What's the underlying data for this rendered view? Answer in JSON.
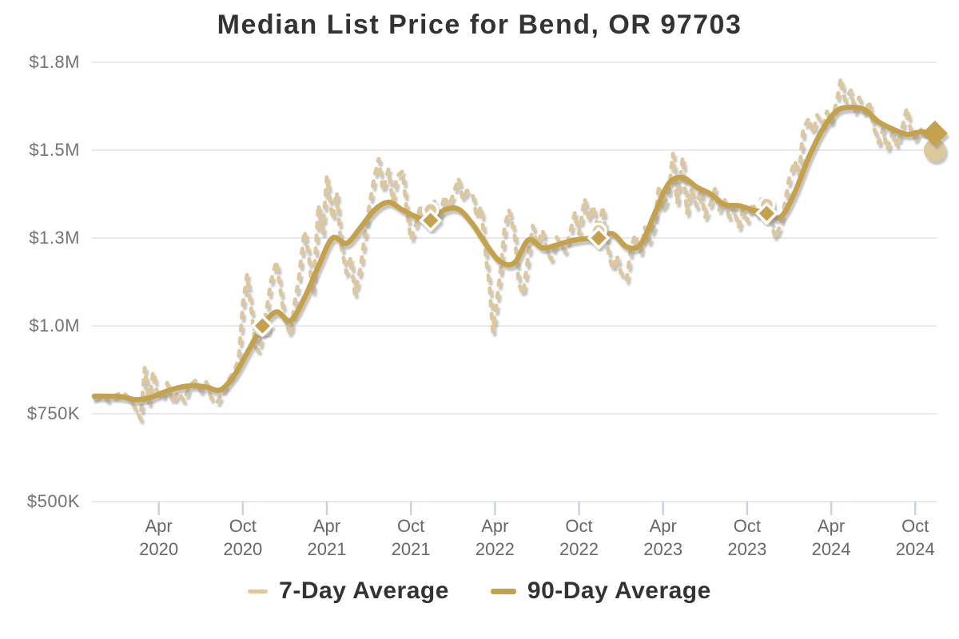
{
  "title": "Median List Price for Bend, OR 97703",
  "legend": [
    {
      "label": "7-Day Average",
      "color": "#dcc89c"
    },
    {
      "label": "90-Day Average",
      "color": "#c4a24c"
    }
  ],
  "colors": {
    "seven_day": "#dcc89c",
    "ninety_day": "#c4a24c",
    "grid": "#dcdcdc",
    "x_tick": "#c8d2e6",
    "axis_text": "#737373",
    "title_text": "#333333",
    "marker_outline": "#ffffff"
  },
  "chart_data": {
    "type": "line",
    "title": "Median List Price for Bend, OR 97703",
    "unit": "USD thousands",
    "x_unit": "months since Nov 2019",
    "xlim": [
      0,
      60
    ],
    "ylim": [
      500,
      1750
    ],
    "grid": "horizontal",
    "legend_position": "bottom-center",
    "y_ticks": [
      {
        "label": "$1.8M",
        "value": 1750
      },
      {
        "label": "$1.5M",
        "value": 1500
      },
      {
        "label": "$1.3M",
        "value": 1250
      },
      {
        "label": "$1.0M",
        "value": 1000
      },
      {
        "label": "$750K",
        "value": 750
      },
      {
        "label": "$500K",
        "value": 500
      }
    ],
    "x_ticks": [
      {
        "month": "Apr",
        "year": "2020",
        "t": 4.6
      },
      {
        "month": "Oct",
        "year": "2020",
        "t": 10.6
      },
      {
        "month": "Apr",
        "year": "2021",
        "t": 16.6
      },
      {
        "month": "Oct",
        "year": "2021",
        "t": 22.6
      },
      {
        "month": "Apr",
        "year": "2022",
        "t": 28.6
      },
      {
        "month": "Oct",
        "year": "2022",
        "t": 34.6
      },
      {
        "month": "Apr",
        "year": "2023",
        "t": 40.6
      },
      {
        "month": "Oct",
        "year": "2023",
        "t": 46.6
      },
      {
        "month": "Apr",
        "year": "2024",
        "t": 52.6
      },
      {
        "month": "Oct",
        "year": "2024",
        "t": 58.6
      }
    ],
    "series": [
      {
        "name": "7-Day Average",
        "style": "dashed",
        "color": "#dcc89c",
        "points": [
          [
            0,
            795
          ],
          [
            0.5,
            808
          ],
          [
            1,
            788
          ],
          [
            1.5,
            802
          ],
          [
            2,
            812
          ],
          [
            2.5,
            795
          ],
          [
            3,
            760
          ],
          [
            3.3,
            735
          ],
          [
            3.6,
            880
          ],
          [
            3.9,
            780
          ],
          [
            4.2,
            870
          ],
          [
            4.5,
            810
          ],
          [
            4.9,
            795
          ],
          [
            5.2,
            838
          ],
          [
            5.6,
            782
          ],
          [
            6,
            812
          ],
          [
            6.4,
            786
          ],
          [
            6.8,
            830
          ],
          [
            7.2,
            844
          ],
          [
            7.6,
            815
          ],
          [
            8,
            840
          ],
          [
            8.4,
            788
          ],
          [
            8.8,
            784
          ],
          [
            9.2,
            815
          ],
          [
            9.6,
            848
          ],
          [
            10,
            872
          ],
          [
            10.3,
            905
          ],
          [
            10.6,
            1060
          ],
          [
            10.9,
            1145
          ],
          [
            11.2,
            1050
          ],
          [
            11.5,
            940
          ],
          [
            11.75,
            928
          ],
          [
            12,
            995
          ],
          [
            12.3,
            1045
          ],
          [
            12.6,
            1125
          ],
          [
            13,
            1185
          ],
          [
            13.3,
            1100
          ],
          [
            13.6,
            1015
          ],
          [
            14,
            975
          ],
          [
            14.3,
            1065
          ],
          [
            14.6,
            1135
          ],
          [
            15,
            1270
          ],
          [
            15.3,
            1205
          ],
          [
            15.6,
            1090
          ],
          [
            16,
            1345
          ],
          [
            16.3,
            1265
          ],
          [
            16.6,
            1425
          ],
          [
            17,
            1305
          ],
          [
            17.3,
            1380
          ],
          [
            17.6,
            1235
          ],
          [
            18,
            1150
          ],
          [
            18.3,
            1195
          ],
          [
            18.6,
            1090
          ],
          [
            19,
            1165
          ],
          [
            19.3,
            1255
          ],
          [
            19.6,
            1335
          ],
          [
            20,
            1425
          ],
          [
            20.3,
            1475
          ],
          [
            20.6,
            1385
          ],
          [
            21,
            1445
          ],
          [
            21.3,
            1355
          ],
          [
            21.6,
            1425
          ],
          [
            22,
            1440
          ],
          [
            22.3,
            1330
          ],
          [
            22.6,
            1245
          ],
          [
            23,
            1295
          ],
          [
            23.3,
            1345
          ],
          [
            23.6,
            1305
          ],
          [
            24,
            1330
          ],
          [
            24.3,
            1355
          ],
          [
            24.6,
            1305
          ],
          [
            25,
            1370
          ],
          [
            25.3,
            1340
          ],
          [
            25.6,
            1372
          ],
          [
            26,
            1420
          ],
          [
            26.3,
            1360
          ],
          [
            26.6,
            1385
          ],
          [
            27,
            1375
          ],
          [
            27.3,
            1310
          ],
          [
            27.6,
            1340
          ],
          [
            28,
            1180
          ],
          [
            28.2,
            1120
          ],
          [
            28.45,
            985
          ],
          [
            28.7,
            1060
          ],
          [
            29,
            1160
          ],
          [
            29.3,
            1285
          ],
          [
            29.6,
            1330
          ],
          [
            30,
            1260
          ],
          [
            30.3,
            1120
          ],
          [
            30.6,
            1090
          ],
          [
            31,
            1205
          ],
          [
            31.3,
            1285
          ],
          [
            31.6,
            1230
          ],
          [
            32,
            1272
          ],
          [
            32.3,
            1212
          ],
          [
            32.6,
            1190
          ],
          [
            33,
            1252
          ],
          [
            33.3,
            1232
          ],
          [
            33.6,
            1212
          ],
          [
            34,
            1272
          ],
          [
            34.3,
            1322
          ],
          [
            34.6,
            1262
          ],
          [
            35,
            1362
          ],
          [
            35.3,
            1302
          ],
          [
            35.6,
            1342
          ],
          [
            36,
            1270
          ],
          [
            36.3,
            1340
          ],
          [
            36.6,
            1230
          ],
          [
            37,
            1160
          ],
          [
            37.3,
            1200
          ],
          [
            37.6,
            1150
          ],
          [
            38,
            1130
          ],
          [
            38.3,
            1220
          ],
          [
            38.6,
            1260
          ],
          [
            39,
            1210
          ],
          [
            39.3,
            1280
          ],
          [
            39.6,
            1240
          ],
          [
            40,
            1290
          ],
          [
            40.3,
            1400
          ],
          [
            40.6,
            1330
          ],
          [
            41,
            1380
          ],
          [
            41.3,
            1490
          ],
          [
            41.6,
            1350
          ],
          [
            42,
            1480
          ],
          [
            42.3,
            1320
          ],
          [
            42.6,
            1390
          ],
          [
            43,
            1340
          ],
          [
            43.3,
            1390
          ],
          [
            43.6,
            1310
          ],
          [
            44,
            1350
          ],
          [
            44.3,
            1390
          ],
          [
            44.6,
            1330
          ],
          [
            45,
            1360
          ],
          [
            45.3,
            1310
          ],
          [
            45.6,
            1340
          ],
          [
            46,
            1280
          ],
          [
            46.3,
            1330
          ],
          [
            46.6,
            1300
          ],
          [
            47,
            1350
          ],
          [
            47.3,
            1310
          ],
          [
            47.6,
            1360
          ],
          [
            48,
            1345
          ],
          [
            48.3,
            1300
          ],
          [
            48.6,
            1250
          ],
          [
            49,
            1290
          ],
          [
            49.3,
            1350
          ],
          [
            49.6,
            1420
          ],
          [
            50,
            1470
          ],
          [
            50.3,
            1430
          ],
          [
            50.6,
            1560
          ],
          [
            51,
            1590
          ],
          [
            51.3,
            1550
          ],
          [
            51.6,
            1600
          ],
          [
            52,
            1570
          ],
          [
            52.3,
            1610
          ],
          [
            52.6,
            1580
          ],
          [
            53,
            1640
          ],
          [
            53.3,
            1705
          ],
          [
            53.6,
            1640
          ],
          [
            54,
            1670
          ],
          [
            54.3,
            1610
          ],
          [
            54.6,
            1650
          ],
          [
            55,
            1600
          ],
          [
            55.3,
            1640
          ],
          [
            55.6,
            1570
          ],
          [
            56,
            1520
          ],
          [
            56.3,
            1560
          ],
          [
            56.6,
            1502
          ],
          [
            57,
            1552
          ],
          [
            57.3,
            1512
          ],
          [
            57.6,
            1552
          ],
          [
            58,
            1620
          ],
          [
            58.3,
            1552
          ],
          [
            58.6,
            1532
          ],
          [
            59,
            1560
          ],
          [
            59.3,
            1542
          ],
          [
            59.6,
            1552
          ],
          [
            60,
            1500
          ]
        ]
      },
      {
        "name": "90-Day Average",
        "style": "solid",
        "color": "#c4a24c",
        "points": [
          [
            0,
            800
          ],
          [
            1,
            800
          ],
          [
            2,
            798
          ],
          [
            3,
            790
          ],
          [
            4,
            796
          ],
          [
            5,
            812
          ],
          [
            6,
            824
          ],
          [
            7,
            830
          ],
          [
            8,
            826
          ],
          [
            9,
            818
          ],
          [
            10,
            860
          ],
          [
            11,
            930
          ],
          [
            12,
            1000
          ],
          [
            13,
            1040
          ],
          [
            14,
            1015
          ],
          [
            15,
            1080
          ],
          [
            16,
            1170
          ],
          [
            17,
            1250
          ],
          [
            18,
            1235
          ],
          [
            19,
            1280
          ],
          [
            20,
            1330
          ],
          [
            21,
            1352
          ],
          [
            22,
            1330
          ],
          [
            23,
            1310
          ],
          [
            24,
            1300
          ],
          [
            25,
            1330
          ],
          [
            26,
            1332
          ],
          [
            27,
            1290
          ],
          [
            28,
            1230
          ],
          [
            29,
            1182
          ],
          [
            30,
            1180
          ],
          [
            31,
            1245
          ],
          [
            32,
            1222
          ],
          [
            33,
            1230
          ],
          [
            34,
            1242
          ],
          [
            35,
            1248
          ],
          [
            36,
            1250
          ],
          [
            37,
            1262
          ],
          [
            38,
            1225
          ],
          [
            39,
            1232
          ],
          [
            40,
            1320
          ],
          [
            41,
            1405
          ],
          [
            42,
            1422
          ],
          [
            43,
            1395
          ],
          [
            44,
            1375
          ],
          [
            45,
            1345
          ],
          [
            46,
            1342
          ],
          [
            47,
            1330
          ],
          [
            48,
            1320
          ],
          [
            49,
            1310
          ],
          [
            50,
            1380
          ],
          [
            51,
            1480
          ],
          [
            52,
            1560
          ],
          [
            53,
            1612
          ],
          [
            54,
            1622
          ],
          [
            55,
            1615
          ],
          [
            56,
            1580
          ],
          [
            57,
            1560
          ],
          [
            58,
            1545
          ],
          [
            59,
            1552
          ],
          [
            60,
            1548
          ]
        ]
      }
    ],
    "markers": [
      {
        "t": 12,
        "seven_day": 995,
        "ninety_day": 1000,
        "end": false
      },
      {
        "t": 24,
        "seven_day": 1330,
        "ninety_day": 1300,
        "end": false
      },
      {
        "t": 36,
        "seven_day": 1270,
        "ninety_day": 1250,
        "end": false
      },
      {
        "t": 48,
        "seven_day": 1345,
        "ninety_day": 1320,
        "end": false
      },
      {
        "t": 60,
        "seven_day": 1500,
        "ninety_day": 1548,
        "end": true
      }
    ]
  }
}
